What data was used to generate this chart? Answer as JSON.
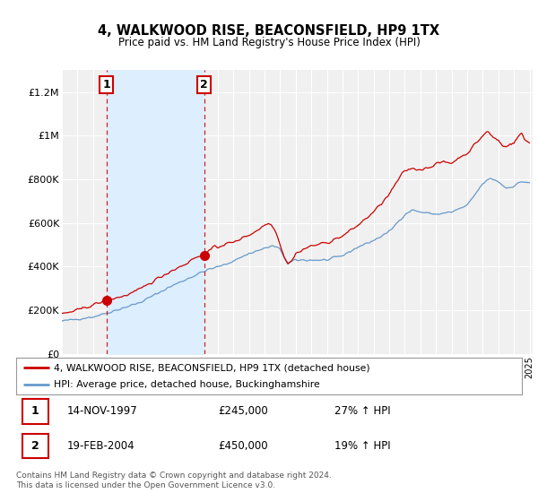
{
  "title": "4, WALKWOOD RISE, BEACONSFIELD, HP9 1TX",
  "subtitle": "Price paid vs. HM Land Registry's House Price Index (HPI)",
  "legend_line1": "4, WALKWOOD RISE, BEACONSFIELD, HP9 1TX (detached house)",
  "legend_line2": "HPI: Average price, detached house, Buckinghamshire",
  "sale1_date": "14-NOV-1997",
  "sale1_price": "£245,000",
  "sale1_hpi": "27% ↑ HPI",
  "sale1_year": 1997.87,
  "sale1_value": 245000,
  "sale2_date": "19-FEB-2004",
  "sale2_price": "£450,000",
  "sale2_hpi": "19% ↑ HPI",
  "sale2_year": 2004.12,
  "sale2_value": 450000,
  "red_line_color": "#cc0000",
  "blue_line_color": "#6699cc",
  "shade_color": "#ddeeff",
  "chart_bg": "#f0f0f0",
  "grid_color": "#ffffff",
  "footer": "Contains HM Land Registry data © Crown copyright and database right 2024.\nThis data is licensed under the Open Government Licence v3.0.",
  "ylim": [
    0,
    1300000
  ],
  "yticks": [
    0,
    200000,
    400000,
    600000,
    800000,
    1000000,
    1200000
  ],
  "ytick_labels": [
    "£0",
    "£200K",
    "£400K",
    "£600K",
    "£800K",
    "£1M",
    "£1.2M"
  ]
}
